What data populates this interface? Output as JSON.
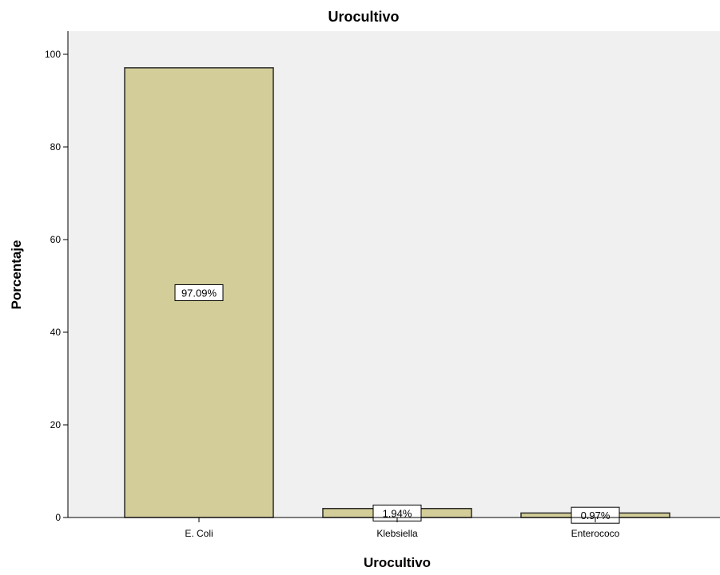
{
  "chart_data": {
    "type": "bar",
    "title": "Urocultivo",
    "xlabel": "Urocultivo",
    "ylabel": "Porcentaje",
    "categories": [
      "E. Coli",
      "Klebsiella",
      "Enterococo"
    ],
    "values": [
      97.09,
      1.94,
      0.97
    ],
    "data_labels": [
      "97.09%",
      "1.94%",
      "0.97%"
    ],
    "ylim": [
      0,
      105
    ],
    "yticks": [
      0,
      20,
      40,
      60,
      80,
      100
    ],
    "grid": false,
    "legend": "none",
    "colors": {
      "bar_fill": "#d3ce99",
      "bar_stroke": "#2b2b2b",
      "plot_background": "#f0f0f0",
      "axis": "#000000",
      "label_box_fill": "#ffffff"
    }
  }
}
